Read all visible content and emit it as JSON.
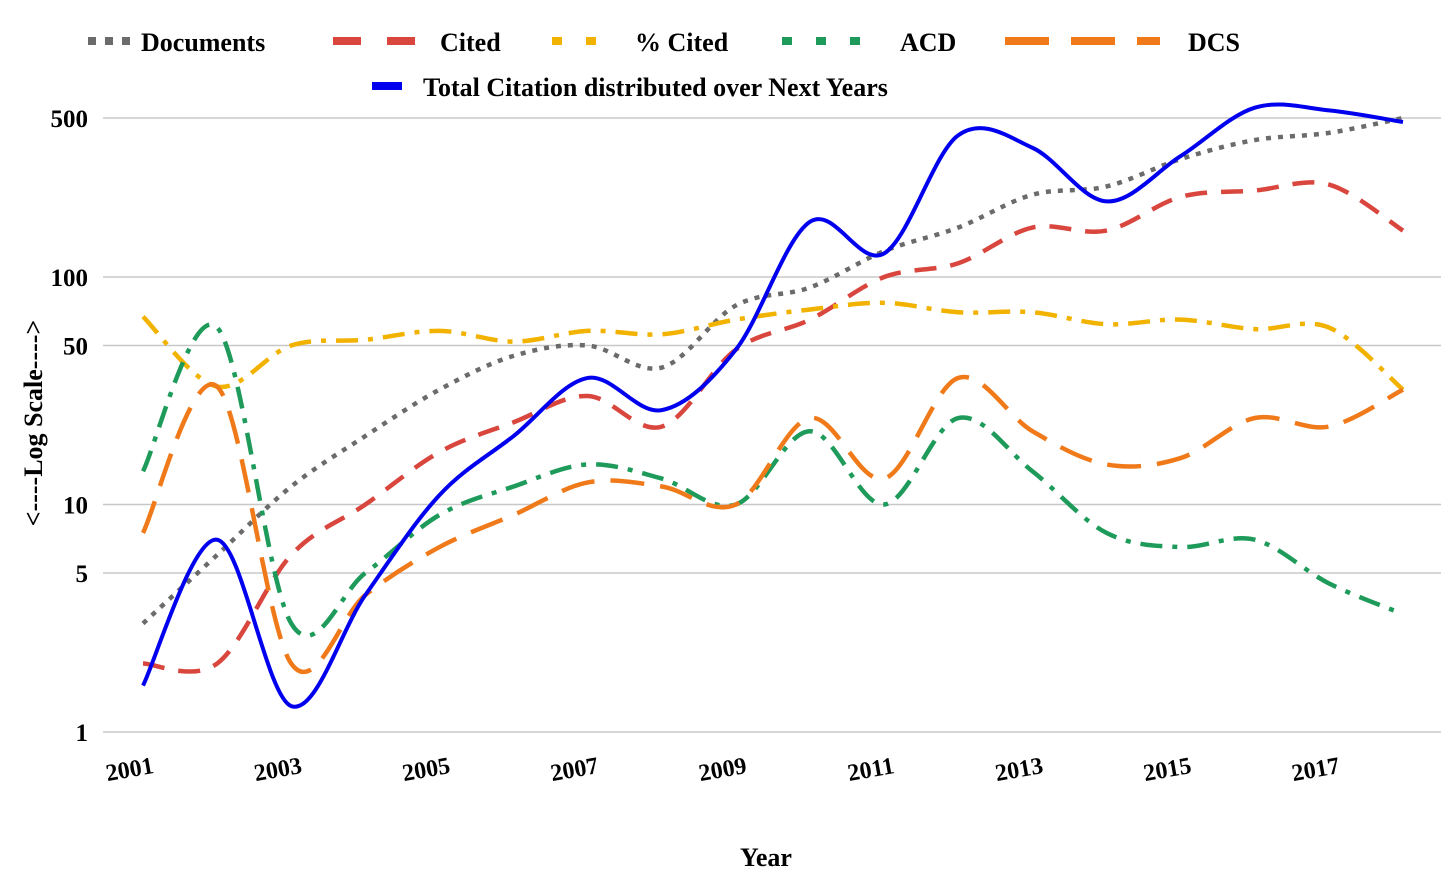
{
  "chart_data": {
    "type": "line",
    "xlabel": "Year",
    "ylabel": "<----Log Scale---->",
    "y_scale": "log",
    "ylim": [
      1,
      650
    ],
    "y_ticks": [
      1,
      5,
      10,
      50,
      100,
      500
    ],
    "y_tick_labels": [
      "1",
      "5",
      "10",
      "50",
      "100",
      "500"
    ],
    "x_tick_labels": [
      "2001",
      "2003",
      "2005",
      "2007",
      "2009",
      "2011",
      "2013",
      "2015",
      "2017"
    ],
    "grid": true,
    "legend_placement": "top",
    "categories": [
      2001,
      2002,
      2003,
      2004,
      2005,
      2006,
      2007,
      2008,
      2009,
      2010,
      2011,
      2012,
      2013,
      2014,
      2015,
      2016,
      2017,
      2018
    ],
    "series": [
      {
        "name": "Documents",
        "color": "#6b6b6b",
        "style": "dotted",
        "values": [
          3,
          6,
          12,
          20,
          32,
          45,
          50,
          40,
          75,
          90,
          130,
          165,
          230,
          250,
          330,
          400,
          430,
          500
        ]
      },
      {
        "name": "Cited",
        "color": "#d9463e",
        "style": "dashed",
        "values": [
          2,
          2,
          6,
          10,
          17,
          23,
          30,
          22,
          48,
          65,
          100,
          115,
          165,
          160,
          225,
          240,
          255,
          160
        ]
      },
      {
        "name": "% Cited",
        "color": "#f2b200",
        "style": "dashdot",
        "values": [
          67,
          33,
          50,
          53,
          58,
          52,
          58,
          56,
          65,
          72,
          77,
          70,
          70,
          62,
          65,
          59,
          60,
          32
        ]
      },
      {
        "name": "ACD",
        "color": "#1e9b5a",
        "style": "dashdot",
        "values": [
          14,
          60,
          3,
          5,
          9,
          12,
          15,
          13,
          10,
          21,
          10,
          24,
          14,
          7.5,
          6.5,
          7,
          4.5,
          3.3
        ]
      },
      {
        "name": "DCS",
        "color": "#f07a1a",
        "style": "longdash",
        "values": [
          7.5,
          33,
          2,
          4,
          6.5,
          9,
          12.5,
          12,
          10,
          24,
          13,
          36,
          21,
          15,
          16,
          24,
          22,
          32
        ]
      },
      {
        "name": "Total Citation distributed over Next Years",
        "color": "#0000ee",
        "style": "solid",
        "values": [
          1.6,
          7,
          1.3,
          4,
          11,
          20,
          36,
          26,
          48,
          175,
          127,
          420,
          370,
          215,
          340,
          555,
          540,
          480
        ]
      }
    ]
  }
}
